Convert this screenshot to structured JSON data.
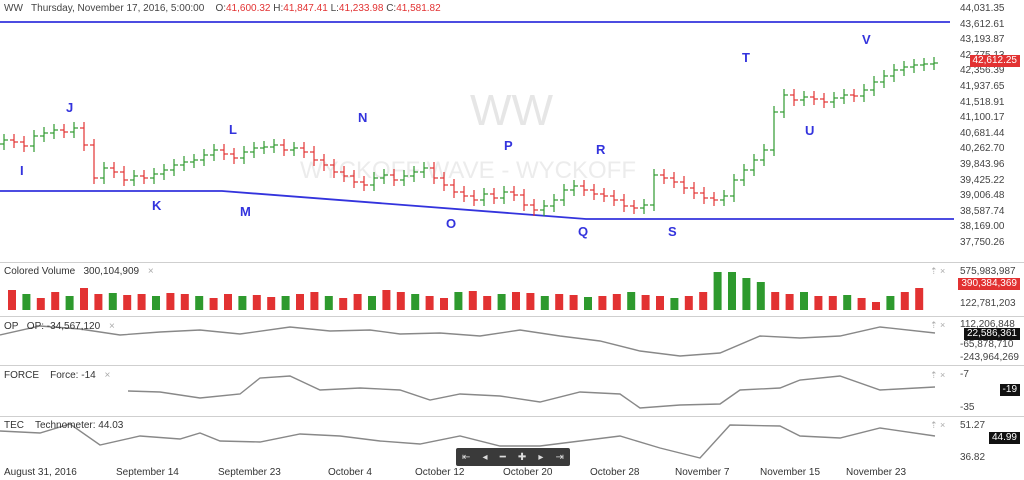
{
  "header": {
    "symbol": "WW",
    "datetime": "Thursday, November 17, 2016, 5:00:00",
    "open_label": "O:",
    "open": "41,600.32",
    "high_label": "H:",
    "high": "41,847.41",
    "low_label": "L:",
    "low": "41,233.98",
    "close_label": "C:",
    "close": "41,581.82"
  },
  "watermark": {
    "title": "WW",
    "subtitle": "WYCKOFF WAVE - WYCKOFF"
  },
  "price_axis": [
    "44,031.35",
    "43,612.61",
    "43,193.87",
    "42,775.13",
    "42,356.39",
    "41,937.65",
    "41,518.91",
    "41,100.17",
    "40,681.44",
    "40,262.70",
    "39,843.96",
    "39,425.22",
    "39,006.48",
    "38,587.74",
    "38,169.00",
    "37,750.26"
  ],
  "last_price": "42,612.25",
  "wave_labels": [
    "I",
    "J",
    "K",
    "L",
    "M",
    "N",
    "O",
    "P",
    "Q",
    "R",
    "S",
    "T",
    "U",
    "V"
  ],
  "volume_pane": {
    "name": "Colored Volume",
    "value": "300,104,909",
    "axis": [
      "575,983,987",
      "122,781,203"
    ],
    "last": "390,384,369"
  },
  "op_pane": {
    "name": "OP",
    "label": "OP: -34,567,120",
    "axis": [
      "112,206,848",
      "-65,878,710",
      "-243,964,269"
    ],
    "last": "22,586,361"
  },
  "force_pane": {
    "name": "FORCE",
    "label": "Force: -14",
    "axis": [
      "-7",
      "-35"
    ],
    "last": "-19"
  },
  "tec_pane": {
    "name": "TEC",
    "label": "Technometer: 44.03",
    "axis": [
      "51.27",
      "36.82"
    ],
    "last": "44.99"
  },
  "dates": [
    "August 31, 2016",
    "September 14",
    "September 23",
    "October 4",
    "October 12",
    "October 20",
    "October 28",
    "November 7",
    "November 15",
    "November 23"
  ],
  "colors": {
    "up": "#2e9a2e",
    "down": "#e23232",
    "trend": "#3333dd",
    "line": "#888888"
  },
  "icons": [
    "close-x-icon",
    "arrow-up-icon",
    "nav-first-icon",
    "nav-prev-icon",
    "nav-zoom-out-icon",
    "nav-zoom-in-icon",
    "nav-next-icon",
    "nav-last-icon"
  ]
}
